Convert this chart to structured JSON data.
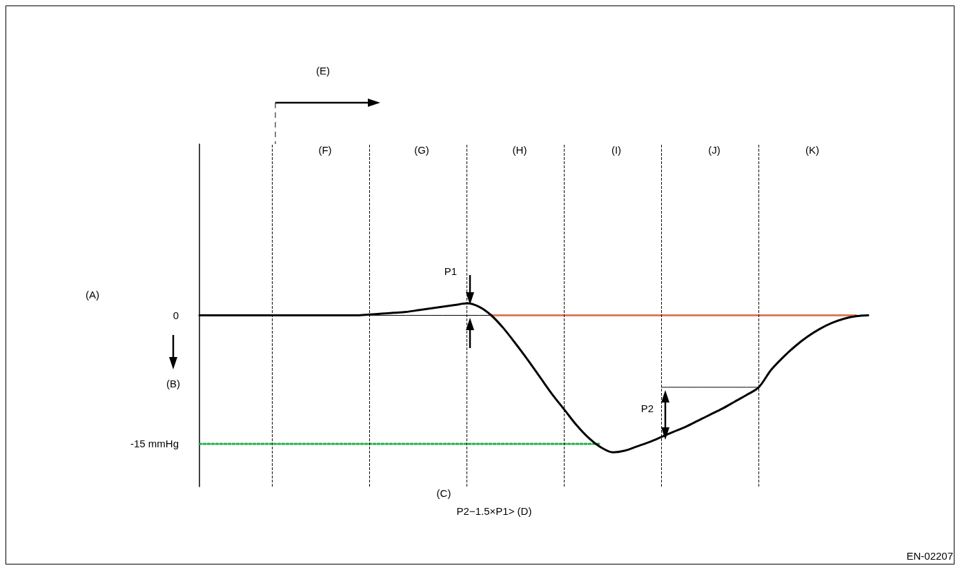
{
  "chart_data": {
    "type": "line",
    "categories": [
      null,
      null,
      null,
      null,
      null,
      null,
      null,
      null,
      null,
      null,
      null,
      null,
      null,
      null,
      null,
      null,
      null,
      null,
      null,
      null,
      null,
      null,
      null,
      null,
      null,
      null,
      null,
      null,
      null,
      null,
      null,
      null,
      null,
      null,
      null,
      null,
      null,
      null,
      null,
      null,
      null,
      null,
      null,
      null,
      null,
      null,
      null,
      null,
      null,
      null,
      null,
      null,
      null,
      null,
      null,
      null
    ],
    "series": [
      {
        "color": "#000000",
        "values": [
          0,
          0,
          0,
          0,
          0,
          0,
          0,
          0,
          0,
          0,
          0,
          0,
          0,
          0,
          0.1,
          0.2,
          0.3,
          0.4,
          0.6,
          0.8,
          1.0,
          1.2,
          1.4,
          1.0,
          0,
          -1.5,
          -3.3,
          -5.2,
          -7.2,
          -9.2,
          -11.0,
          -12.8,
          -14.3,
          -15.4,
          -16.0,
          -15.8,
          -15.3,
          -14.8,
          -14.2,
          -13.6,
          -13.0,
          -12.3,
          -11.6,
          -10.9,
          -10.1,
          -9.3,
          -8.4,
          -6.4,
          -4.9,
          -3.6,
          -2.5,
          -1.6,
          -0.9,
          -0.4,
          -0.1,
          0
        ]
      },
      {
        "color": "#000000",
        "values": [
          0,
          0,
          0,
          0,
          0,
          0,
          0,
          0,
          0,
          0,
          0,
          0,
          0,
          0,
          0,
          0,
          0,
          0,
          0,
          0,
          0,
          0,
          0,
          0,
          0,
          null,
          null,
          null,
          null,
          null,
          null,
          null,
          null,
          null,
          null,
          null,
          null,
          null,
          null,
          null,
          null,
          null,
          null,
          null,
          null,
          null,
          null,
          null,
          null,
          null,
          null,
          null,
          null,
          null,
          null,
          null
        ]
      },
      {
        "color": "#e07a5f",
        "values": [
          null,
          null,
          null,
          null,
          null,
          null,
          null,
          null,
          null,
          null,
          null,
          null,
          null,
          null,
          null,
          null,
          null,
          null,
          null,
          null,
          null,
          null,
          null,
          null,
          0,
          0,
          0,
          0,
          0,
          0,
          0,
          0,
          0,
          0,
          0,
          0,
          0,
          0,
          0,
          0,
          0,
          0,
          0,
          0,
          0,
          0,
          0,
          0,
          0,
          0,
          0,
          0,
          0,
          0,
          0,
          null
        ]
      },
      {
        "color": "#1fb040",
        "line_style": "dotted",
        "values": [
          -15,
          -15,
          -15,
          -15,
          -15,
          -15,
          -15,
          -15,
          -15,
          -15,
          -15,
          -15,
          -15,
          -15,
          -15,
          -15,
          -15,
          -15,
          -15,
          -15,
          -15,
          -15,
          -15,
          -15,
          -15,
          -15,
          -15,
          -15,
          -15,
          -15,
          -15,
          -15,
          -15,
          -15,
          null,
          null,
          null,
          null,
          null,
          null,
          null,
          null,
          null,
          null,
          null,
          null,
          null,
          null,
          null,
          null,
          null,
          null,
          null,
          null,
          null,
          null
        ]
      },
      {
        "color": "#000000",
        "values": [
          null,
          null,
          null,
          null,
          null,
          null,
          null,
          null,
          null,
          null,
          null,
          null,
          null,
          null,
          null,
          null,
          null,
          null,
          null,
          null,
          null,
          null,
          null,
          null,
          null,
          null,
          null,
          null,
          null,
          null,
          null,
          null,
          null,
          null,
          null,
          null,
          null,
          null,
          -8.4,
          -8.4,
          -8.4,
          -8.4,
          -8.4,
          -8.4,
          -8.4,
          -8.4,
          -8.4,
          null,
          null,
          null,
          null,
          null,
          null,
          null,
          null,
          null
        ]
      }
    ],
    "ylim": [
      -20,
      20
    ],
    "yticks": [
      0,
      {
        "value": -15,
        "label": "-15 mmHg"
      }
    ],
    "tick_labels": "y",
    "marker": "none",
    "line_style": "solid",
    "annotations": [
      "(A)",
      "(B)",
      "(C)",
      "P2−1.5×P1>  (D)",
      "(E)",
      "(F)",
      "(G)",
      "(H)",
      "(I)",
      "(J)",
      "(K)",
      "P1",
      "P2",
      "EN-02207"
    ]
  }
}
